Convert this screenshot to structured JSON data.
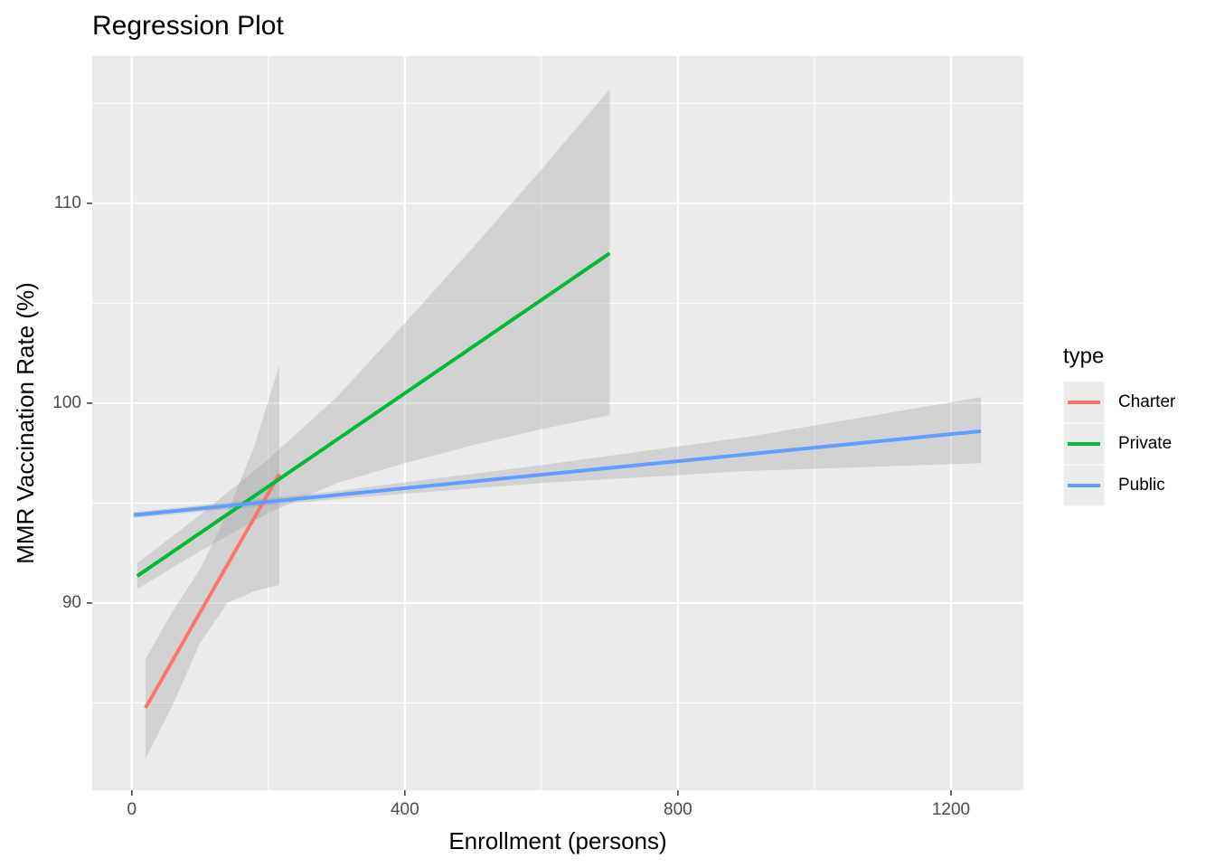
{
  "chart_data": {
    "type": "regression",
    "title": "Regression Plot",
    "x_label": "Enrollment (persons)",
    "y_label": "MMR Vaccination Rate (%)",
    "legend_title": "type",
    "legend_position": "right",
    "grid": true,
    "xlim": [
      -58,
      1306
    ],
    "ylim": [
      80.63,
      117.37
    ],
    "xticks": [
      0,
      400,
      800,
      1200
    ],
    "yticks": [
      90,
      100,
      110
    ],
    "xminor": [
      200,
      600,
      1000
    ],
    "yminor": [
      85,
      95,
      105,
      115
    ],
    "series": [
      {
        "name": "Charter",
        "color": "#F8766D",
        "x": [
          20,
          216
        ],
        "values": [
          84.75,
          96.45
        ],
        "band_x": [
          20,
          60,
          100,
          140,
          180,
          216
        ],
        "band_lower": [
          82.2,
          84.9,
          88.0,
          90.0,
          90.6,
          90.9
        ],
        "band_upper": [
          87.2,
          89.6,
          91.7,
          94.5,
          97.9,
          101.9
        ]
      },
      {
        "name": "Private",
        "color": "#00BA38",
        "x": [
          8,
          700
        ],
        "values": [
          91.35,
          107.5
        ],
        "band_x": [
          8,
          100,
          200,
          300,
          400,
          500,
          600,
          700
        ],
        "band_lower": [
          90.7,
          92.6,
          94.5,
          96.0,
          97.0,
          97.9,
          98.7,
          99.4
        ],
        "band_upper": [
          92.0,
          94.4,
          97.2,
          100.3,
          104.0,
          107.8,
          111.7,
          115.7
        ]
      },
      {
        "name": "Public",
        "color": "#619CFF",
        "x": [
          3,
          1244
        ],
        "values": [
          94.4,
          98.6
        ],
        "band_x": [
          3,
          300,
          600,
          900,
          1244
        ],
        "band_lower": [
          94.25,
          95.2,
          96.0,
          96.6,
          97.0
        ],
        "band_upper": [
          94.55,
          95.6,
          96.9,
          98.3,
          100.3
        ]
      }
    ]
  }
}
